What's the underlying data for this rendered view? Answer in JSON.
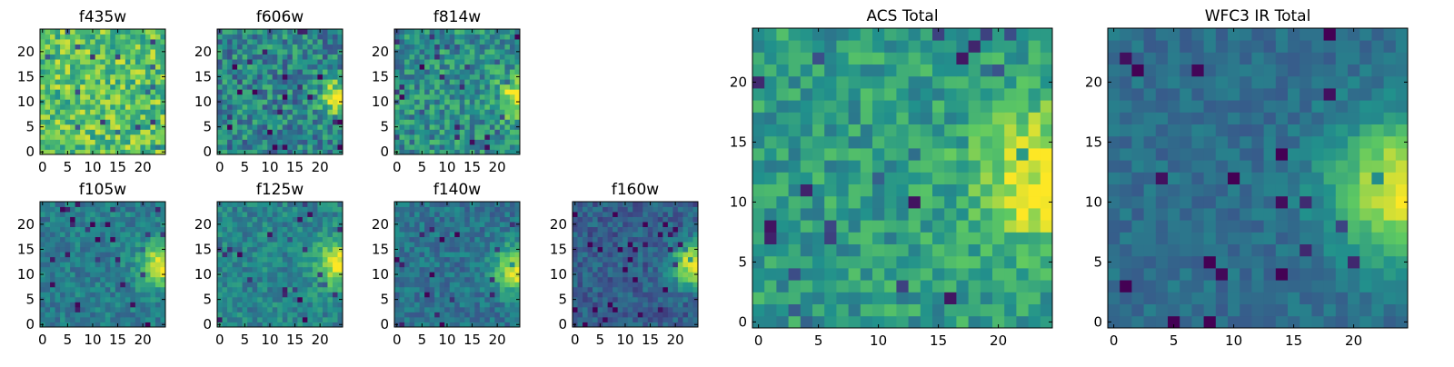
{
  "figure": {
    "background": "#ffffff"
  },
  "colormap": {
    "name": "viridis",
    "stops": [
      "#440154",
      "#3b528b",
      "#21918c",
      "#5ec962",
      "#fde725"
    ]
  },
  "chart_data": [
    {
      "type": "heatmap",
      "title": "f435w",
      "grid_size": [
        25,
        25
      ],
      "xlim": [
        0,
        24
      ],
      "ylim": [
        0,
        24
      ],
      "xticks": [
        "0",
        "5",
        "10",
        "15",
        "20"
      ],
      "yticks": [
        "0",
        "5",
        "10",
        "15",
        "20"
      ],
      "base_level": 0.72,
      "noise": 0.22,
      "source": null,
      "levels": [
        0.72
      ]
    },
    {
      "type": "heatmap",
      "title": "f606w",
      "grid_size": [
        25,
        25
      ],
      "xlim": [
        0,
        24
      ],
      "ylim": [
        0,
        24
      ],
      "xticks": [
        "0",
        "5",
        "10",
        "15",
        "20"
      ],
      "yticks": [
        "0",
        "5",
        "10",
        "15",
        "20"
      ],
      "base_level": 0.45,
      "noise": 0.22,
      "source": {
        "x": 24,
        "y": 11,
        "peak": 0.55,
        "sigma": 2.5
      },
      "levels": [
        0.45
      ]
    },
    {
      "type": "heatmap",
      "title": "f814w",
      "grid_size": [
        25,
        25
      ],
      "xlim": [
        0,
        24
      ],
      "ylim": [
        0,
        24
      ],
      "xticks": [
        "0",
        "5",
        "10",
        "15",
        "20"
      ],
      "yticks": [
        "0",
        "5",
        "10",
        "15",
        "20"
      ],
      "base_level": 0.5,
      "noise": 0.2,
      "source": {
        "x": 24,
        "y": 11,
        "peak": 0.5,
        "sigma": 2.8
      },
      "levels": [
        0.5
      ]
    },
    {
      "type": "heatmap",
      "title": "f105w",
      "grid_size": [
        25,
        25
      ],
      "xlim": [
        0,
        24
      ],
      "ylim": [
        0,
        24
      ],
      "xticks": [
        "0",
        "5",
        "10",
        "15",
        "20"
      ],
      "yticks": [
        "0",
        "5",
        "10",
        "15",
        "20"
      ],
      "base_level": 0.42,
      "noise": 0.12,
      "source": {
        "x": 24,
        "y": 12,
        "peak": 0.55,
        "sigma": 3.2
      },
      "levels": [
        0.42
      ]
    },
    {
      "type": "heatmap",
      "title": "f125w",
      "grid_size": [
        25,
        25
      ],
      "xlim": [
        0,
        24
      ],
      "ylim": [
        0,
        24
      ],
      "xticks": [
        "0",
        "5",
        "10",
        "15",
        "20"
      ],
      "yticks": [
        "0",
        "5",
        "10",
        "15",
        "20"
      ],
      "base_level": 0.45,
      "noise": 0.13,
      "source": {
        "x": 24,
        "y": 12,
        "peak": 0.55,
        "sigma": 3.2
      },
      "levels": [
        0.45
      ]
    },
    {
      "type": "heatmap",
      "title": "f140w",
      "grid_size": [
        25,
        25
      ],
      "xlim": [
        0,
        24
      ],
      "ylim": [
        0,
        24
      ],
      "xticks": [
        "0",
        "5",
        "10",
        "15",
        "20"
      ],
      "yticks": [
        "0",
        "5",
        "10",
        "15",
        "20"
      ],
      "base_level": 0.38,
      "noise": 0.12,
      "source": {
        "x": 24,
        "y": 11,
        "peak": 0.6,
        "sigma": 3.2
      },
      "levels": [
        0.38
      ]
    },
    {
      "type": "heatmap",
      "title": "f160w",
      "grid_size": [
        25,
        25
      ],
      "xlim": [
        0,
        24
      ],
      "ylim": [
        0,
        24
      ],
      "xticks": [
        "0",
        "5",
        "10",
        "15",
        "20"
      ],
      "yticks": [
        "0",
        "5",
        "10",
        "15",
        "20"
      ],
      "base_level": 0.3,
      "noise": 0.12,
      "source": {
        "x": 24,
        "y": 12,
        "peak": 0.68,
        "sigma": 3.2
      },
      "levels": [
        0.3
      ]
    },
    {
      "type": "heatmap",
      "title": "ACS Total",
      "grid_size": [
        25,
        25
      ],
      "xlim": [
        0,
        24
      ],
      "ylim": [
        0,
        24
      ],
      "xticks": [
        "0",
        "5",
        "10",
        "15",
        "20"
      ],
      "yticks": [
        "0",
        "5",
        "10",
        "15",
        "20"
      ],
      "base_level": 0.55,
      "noise": 0.16,
      "source": {
        "x": 24,
        "y": 12,
        "peak": 0.45,
        "sigma": 4
      },
      "levels": [
        0.55
      ]
    },
    {
      "type": "heatmap",
      "title": "WFC3 IR Total",
      "grid_size": [
        25,
        25
      ],
      "xlim": [
        0,
        24
      ],
      "ylim": [
        0,
        24
      ],
      "xticks": [
        "0",
        "5",
        "10",
        "15",
        "20"
      ],
      "yticks": [
        "0",
        "5",
        "10",
        "15",
        "20"
      ],
      "base_level": 0.36,
      "noise": 0.08,
      "source": {
        "x": 24,
        "y": 11,
        "peak": 0.62,
        "sigma": 4
      },
      "levels": [
        0.36
      ]
    }
  ]
}
